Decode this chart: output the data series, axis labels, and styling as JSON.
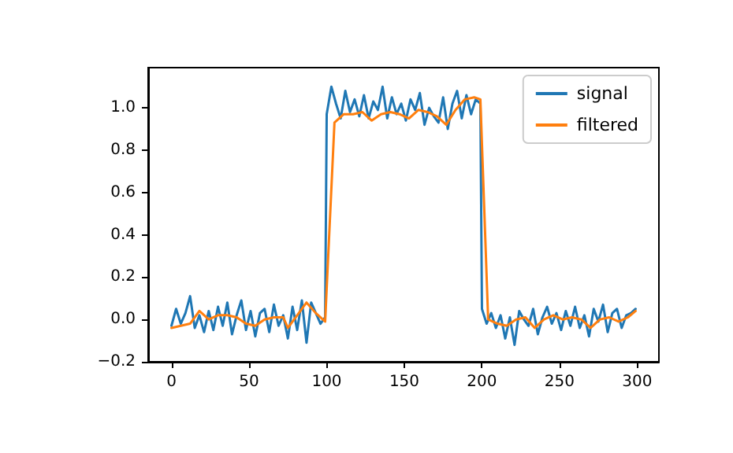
{
  "chart_data": {
    "type": "line",
    "xlim": [
      -15,
      314
    ],
    "xticks": [
      0,
      50,
      100,
      150,
      200,
      250,
      300
    ],
    "ylim": [
      -0.2,
      1.19
    ],
    "yticks": [
      {
        "value": -0.2,
        "label": "−0.2"
      },
      {
        "value": 0,
        "label": "0.0"
      },
      0.2,
      0.4,
      0.6,
      0.8,
      {
        "value": 1,
        "label": "1.0"
      }
    ],
    "grid": false,
    "legend": "top right",
    "marker": "none",
    "line_style": "solid",
    "series": [
      {
        "name": "signal",
        "color": "#1f77b4",
        "x": [
          0,
          3,
          6,
          9,
          12,
          15,
          18,
          21,
          24,
          27,
          30,
          33,
          36,
          39,
          42,
          45,
          48,
          51,
          54,
          57,
          60,
          63,
          66,
          69,
          72,
          75,
          78,
          81,
          84,
          87,
          90,
          93,
          96,
          99,
          100,
          103,
          106,
          109,
          112,
          115,
          118,
          121,
          124,
          127,
          130,
          133,
          136,
          139,
          142,
          145,
          148,
          151,
          154,
          157,
          160,
          163,
          166,
          169,
          172,
          175,
          178,
          181,
          184,
          187,
          190,
          193,
          196,
          199,
          200,
          203,
          206,
          209,
          212,
          215,
          218,
          221,
          224,
          227,
          230,
          233,
          236,
          239,
          242,
          245,
          248,
          251,
          254,
          257,
          260,
          263,
          266,
          269,
          272,
          275,
          278,
          281,
          284,
          287,
          290,
          293,
          296,
          299
        ],
        "values": [
          -0.03,
          0.05,
          -0.02,
          0.03,
          0.11,
          -0.04,
          0.02,
          -0.06,
          0.04,
          -0.05,
          0.06,
          -0.03,
          0.08,
          -0.07,
          0.02,
          0.09,
          -0.05,
          0.04,
          -0.08,
          0.03,
          0.05,
          -0.06,
          0.07,
          -0.03,
          0.02,
          -0.09,
          0.06,
          -0.05,
          0.09,
          -0.11,
          0.08,
          0.03,
          -0.02,
          0.01,
          0.97,
          1.1,
          1.02,
          0.95,
          1.08,
          0.98,
          1.04,
          0.96,
          1.06,
          0.95,
          1.03,
          0.99,
          1.1,
          0.95,
          1.05,
          0.97,
          1.02,
          0.94,
          1.04,
          0.99,
          1.07,
          0.92,
          1.0,
          0.96,
          0.93,
          1.05,
          0.9,
          1.02,
          1.08,
          0.95,
          1.06,
          0.97,
          1.04,
          1.02,
          0.05,
          -0.02,
          0.03,
          -0.04,
          0.02,
          -0.09,
          0.01,
          -0.12,
          0.04,
          0.0,
          -0.03,
          0.05,
          -0.07,
          0.01,
          0.06,
          -0.02,
          0.03,
          -0.05,
          0.04,
          -0.03,
          0.06,
          -0.04,
          0.02,
          -0.08,
          0.05,
          -0.01,
          0.07,
          -0.06,
          0.03,
          0.05,
          -0.04,
          0.02,
          0.03,
          0.05
        ]
      },
      {
        "name": "filtered",
        "color": "#ff7f0e",
        "x": [
          0,
          6,
          12,
          18,
          24,
          30,
          36,
          42,
          48,
          54,
          60,
          66,
          72,
          75,
          81,
          87,
          93,
          99,
          105,
          111,
          117,
          123,
          129,
          135,
          141,
          147,
          153,
          159,
          165,
          171,
          177,
          183,
          189,
          195,
          199,
          204,
          210,
          216,
          222,
          228,
          234,
          240,
          246,
          252,
          258,
          264,
          270,
          276,
          282,
          288,
          294,
          299
        ],
        "values": [
          -0.04,
          -0.03,
          -0.02,
          0.04,
          0.0,
          0.02,
          0.02,
          0.01,
          -0.02,
          -0.03,
          0.0,
          0.01,
          0.01,
          -0.04,
          0.02,
          0.08,
          0.03,
          -0.01,
          0.93,
          0.97,
          0.97,
          0.98,
          0.94,
          0.97,
          0.98,
          0.97,
          0.95,
          0.99,
          0.98,
          0.96,
          0.92,
          0.99,
          1.04,
          1.05,
          1.04,
          0.0,
          -0.02,
          -0.03,
          0.0,
          0.01,
          -0.04,
          0.0,
          0.02,
          0.0,
          0.01,
          0.0,
          -0.04,
          0.0,
          0.01,
          -0.01,
          0.01,
          0.04
        ]
      }
    ]
  }
}
